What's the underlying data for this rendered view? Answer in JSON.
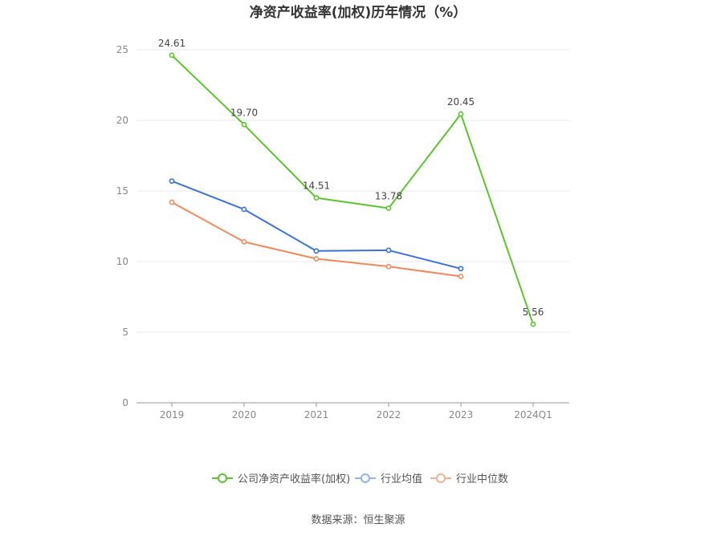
{
  "chart_data": {
    "type": "line",
    "title": "净资产收益率(加权)历年情况（%）",
    "categories": [
      "2019",
      "2020",
      "2021",
      "2022",
      "2023",
      "2024Q1"
    ],
    "ylim": [
      0,
      25
    ],
    "yticks": [
      0,
      5,
      10,
      15,
      20,
      25
    ],
    "grid": true,
    "legend_position": "bottom",
    "series": [
      {
        "name": "公司净资产收益率(加权)",
        "color": "#5cc42c",
        "values": [
          24.61,
          19.7,
          14.51,
          13.78,
          20.45,
          5.56
        ],
        "labels": [
          "24.61",
          "19.70",
          "14.51",
          "13.78",
          "20.45",
          "5.56"
        ]
      },
      {
        "name": "行业均值",
        "color": "#3b72d9",
        "values": [
          15.7,
          13.7,
          10.75,
          10.8,
          9.5,
          null
        ]
      },
      {
        "name": "行业中位数",
        "color": "#f08a5d",
        "values": [
          14.2,
          11.4,
          10.2,
          9.65,
          8.95,
          null
        ]
      }
    ],
    "legend_colors": [
      "#5cc42c",
      "#8fb2f2",
      "#f5b08f"
    ]
  },
  "footer": {
    "source": "数据来源：恒生聚源"
  }
}
